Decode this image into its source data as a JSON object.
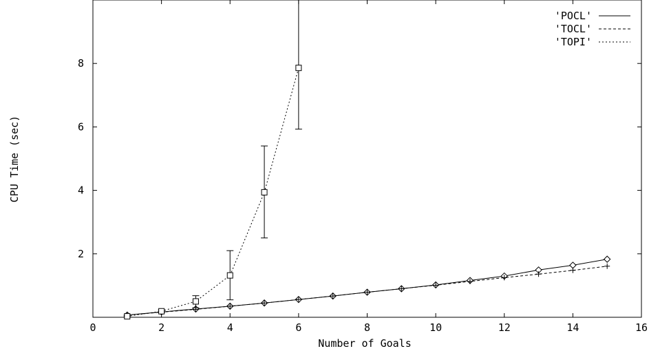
{
  "chart_data": {
    "type": "line",
    "title": "",
    "xlabel": "Number of Goals",
    "ylabel": "CPU Time (sec)",
    "xlim": [
      0,
      16
    ],
    "ylim": [
      0,
      10
    ],
    "xticks": [
      0,
      2,
      4,
      6,
      8,
      10,
      12,
      14,
      16
    ],
    "yticks": [
      2,
      4,
      6,
      8
    ],
    "grid": false,
    "legend_position": "top-right",
    "series": [
      {
        "name": "'POCL'",
        "line_style": "solid",
        "marker": "diamond",
        "x": [
          1,
          2,
          3,
          4,
          5,
          6,
          7,
          8,
          9,
          10,
          11,
          12,
          13,
          14,
          15
        ],
        "y": [
          0.07,
          0.17,
          0.26,
          0.35,
          0.45,
          0.56,
          0.67,
          0.79,
          0.9,
          1.02,
          1.16,
          1.3,
          1.49,
          1.64,
          1.83
        ]
      },
      {
        "name": "'TOCL'",
        "line_style": "dashed",
        "marker": "plus",
        "x": [
          1,
          2,
          3,
          4,
          5,
          6,
          7,
          8,
          9,
          10,
          11,
          12,
          13,
          14,
          15
        ],
        "y": [
          0.07,
          0.16,
          0.25,
          0.35,
          0.45,
          0.56,
          0.67,
          0.79,
          0.9,
          1.01,
          1.13,
          1.25,
          1.36,
          1.48,
          1.61
        ]
      },
      {
        "name": "'TOPI'",
        "line_style": "dotted",
        "marker": "square",
        "x": [
          1,
          2,
          3,
          4,
          5,
          6
        ],
        "y": [
          0.03,
          0.19,
          0.5,
          1.32,
          3.94,
          7.86
        ],
        "error_low": [
          0.02,
          0.15,
          0.3,
          0.55,
          2.5,
          5.93
        ],
        "error_high": [
          0.05,
          0.23,
          0.68,
          2.1,
          5.4,
          10.0
        ]
      }
    ]
  }
}
